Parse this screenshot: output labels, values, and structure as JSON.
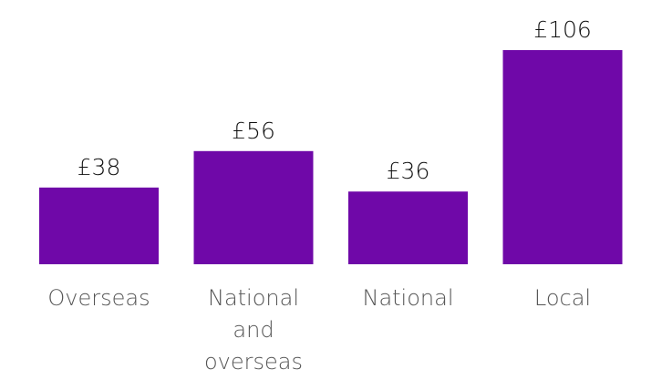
{
  "chart_data": {
    "type": "bar",
    "title": "",
    "xlabel": "",
    "ylabel": "",
    "categories": [
      [
        "Overseas"
      ],
      [
        "National",
        "and",
        "overseas"
      ],
      [
        "National"
      ],
      [
        "Local"
      ]
    ],
    "values": [
      38,
      56,
      36,
      106
    ],
    "value_labels": [
      "£38",
      "£56",
      "£36",
      "£106"
    ],
    "ylim": [
      0,
      106
    ],
    "grid": false,
    "legend": "none",
    "bar_color": "#6f08a8"
  }
}
